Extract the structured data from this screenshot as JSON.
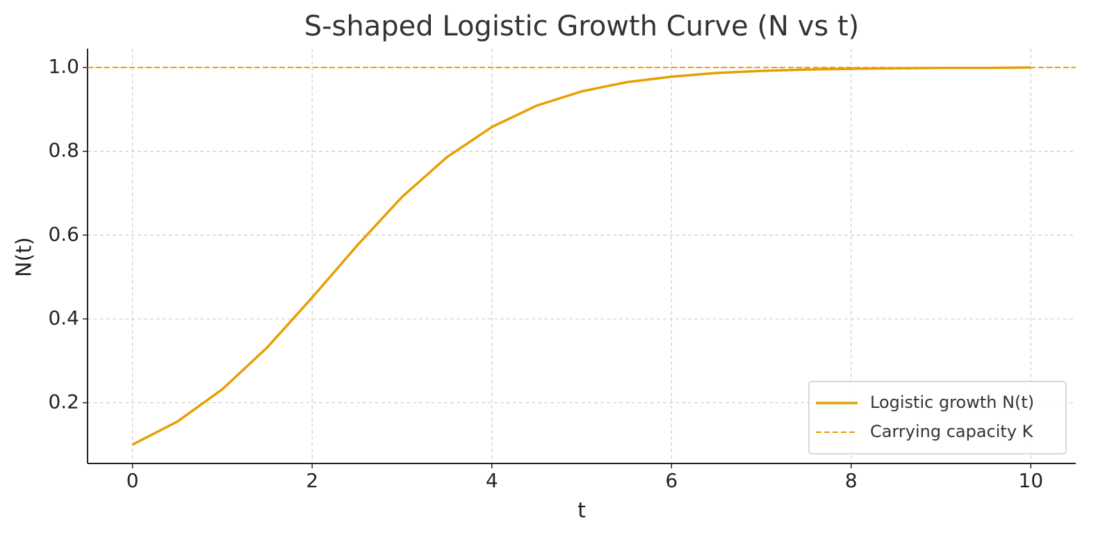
{
  "chart_data": {
    "type": "line",
    "title": "S-shaped Logistic Growth Curve (N vs t)",
    "x_label": "t",
    "y_label": "N(t)",
    "x": [
      0,
      0.5,
      1,
      1.5,
      2,
      2.5,
      3,
      3.5,
      4,
      4.5,
      5,
      5.5,
      6,
      6.5,
      7,
      7.5,
      8,
      8.5,
      9,
      9.5,
      10
    ],
    "series": [
      {
        "name": "Logistic growth N(t)",
        "color": "#e69f00",
        "values": [
          0.1,
          0.155,
          0.232,
          0.332,
          0.451,
          0.575,
          0.691,
          0.786,
          0.858,
          0.909,
          0.943,
          0.965,
          0.978,
          0.987,
          0.992,
          0.995,
          0.997,
          0.998,
          0.999,
          0.999,
          1.0
        ]
      }
    ],
    "reference_lines": [
      {
        "name": "Carrying capacity K",
        "value": 1.0,
        "color": "#e69f00",
        "style": "dashed"
      }
    ],
    "xlim": [
      -0.5,
      10.5
    ],
    "ylim": [
      0.055,
      1.045
    ],
    "xticks": [
      0,
      2,
      4,
      6,
      8,
      10
    ],
    "yticks": [
      0.2,
      0.4,
      0.6,
      0.8,
      {
        "value": 1.0,
        "label": "1.0"
      }
    ],
    "grid": true,
    "legend": "lower right"
  }
}
